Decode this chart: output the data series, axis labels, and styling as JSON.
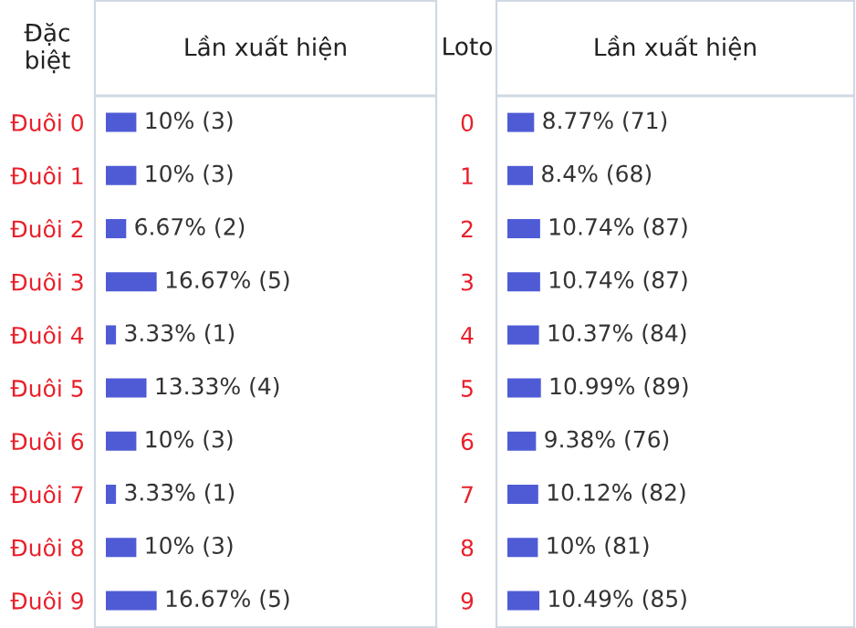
{
  "chart_data": [
    {
      "type": "bar",
      "orientation": "horizontal",
      "xlabel": "Lần xuất hiện",
      "ylabel": "Đặc biệt",
      "categories": [
        "Đuôi 0",
        "Đuôi 1",
        "Đuôi 2",
        "Đuôi 3",
        "Đuôi 4",
        "Đuôi 5",
        "Đuôi 6",
        "Đuôi 7",
        "Đuôi 8",
        "Đuôi 9"
      ],
      "color": "#4f5bd5",
      "values": [
        10,
        10,
        6.67,
        16.67,
        3.33,
        13.33,
        10,
        3.33,
        10,
        16.67
      ],
      "value_labels": [
        "10% (3)",
        "10% (3)",
        "6.67% (2)",
        "16.67% (5)",
        "3.33% (1)",
        "13.33% (4)",
        "10% (3)",
        "3.33% (1)",
        "10% (3)",
        "16.67% (5)"
      ],
      "grid": false,
      "legend": false
    },
    {
      "type": "bar",
      "orientation": "horizontal",
      "xlabel": "Lần xuất hiện",
      "ylabel": "Loto",
      "categories": [
        "0",
        "1",
        "2",
        "3",
        "4",
        "5",
        "6",
        "7",
        "8",
        "9"
      ],
      "color": "#4f5bd5",
      "values": [
        8.77,
        8.4,
        10.74,
        10.74,
        10.37,
        10.99,
        9.38,
        10.12,
        10,
        10.49
      ],
      "value_labels": [
        "8.77% (71)",
        "8.4% (68)",
        "10.74% (87)",
        "10.74% (87)",
        "10.37% (84)",
        "10.99% (89)",
        "9.38% (76)",
        "10.12% (82)",
        "10% (81)",
        "10.49% (85)"
      ],
      "grid": false,
      "legend": false
    }
  ]
}
